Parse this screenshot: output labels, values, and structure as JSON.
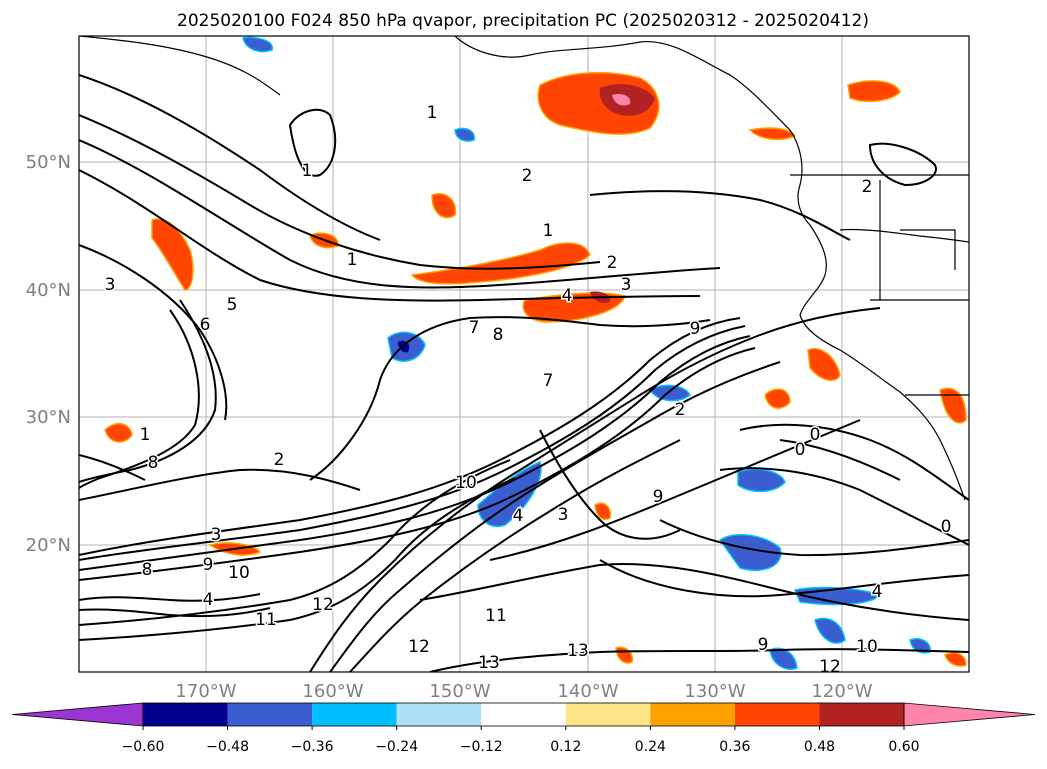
{
  "title": "2025020100 F024 850 hPa qvapor, precipitation PC (2025020312 - 2025020412)",
  "lon_labels": [
    "170°W",
    "160°W",
    "150°W",
    "140°W",
    "130°W",
    "120°W"
  ],
  "lat_labels": [
    "50°N",
    "40°N",
    "30°N",
    "20°N"
  ],
  "colorbar": {
    "ticks": [
      "−0.60",
      "−0.48",
      "−0.36",
      "−0.24",
      "−0.12",
      "0.12",
      "0.24",
      "0.36",
      "0.48",
      "0.60"
    ],
    "colors": [
      "#9c35d4",
      "#00008f",
      "#3a5ed0",
      "#00bfff",
      "#aee0f7",
      "#ffffff",
      "#fde68a",
      "#ffa200",
      "#ff4500",
      "#b22222",
      "#ff85ab"
    ]
  },
  "contour_labels": [
    "1",
    "1",
    "1",
    "1",
    "2",
    "2",
    "2",
    "3",
    "3",
    "4",
    "5",
    "6",
    "7",
    "7",
    "8",
    "8",
    "9",
    "9",
    "2",
    "4",
    "1",
    "8",
    "10",
    "11",
    "12",
    "3",
    "4",
    "3",
    "2",
    "0",
    "0",
    "0",
    "9",
    "10",
    "11",
    "12",
    "13",
    "13",
    "4",
    "10",
    "9",
    "12"
  ],
  "colors": {
    "grid": "#b0b0b0",
    "label_gray": "#808080",
    "coast": "#000000",
    "contour": "#000000"
  }
}
